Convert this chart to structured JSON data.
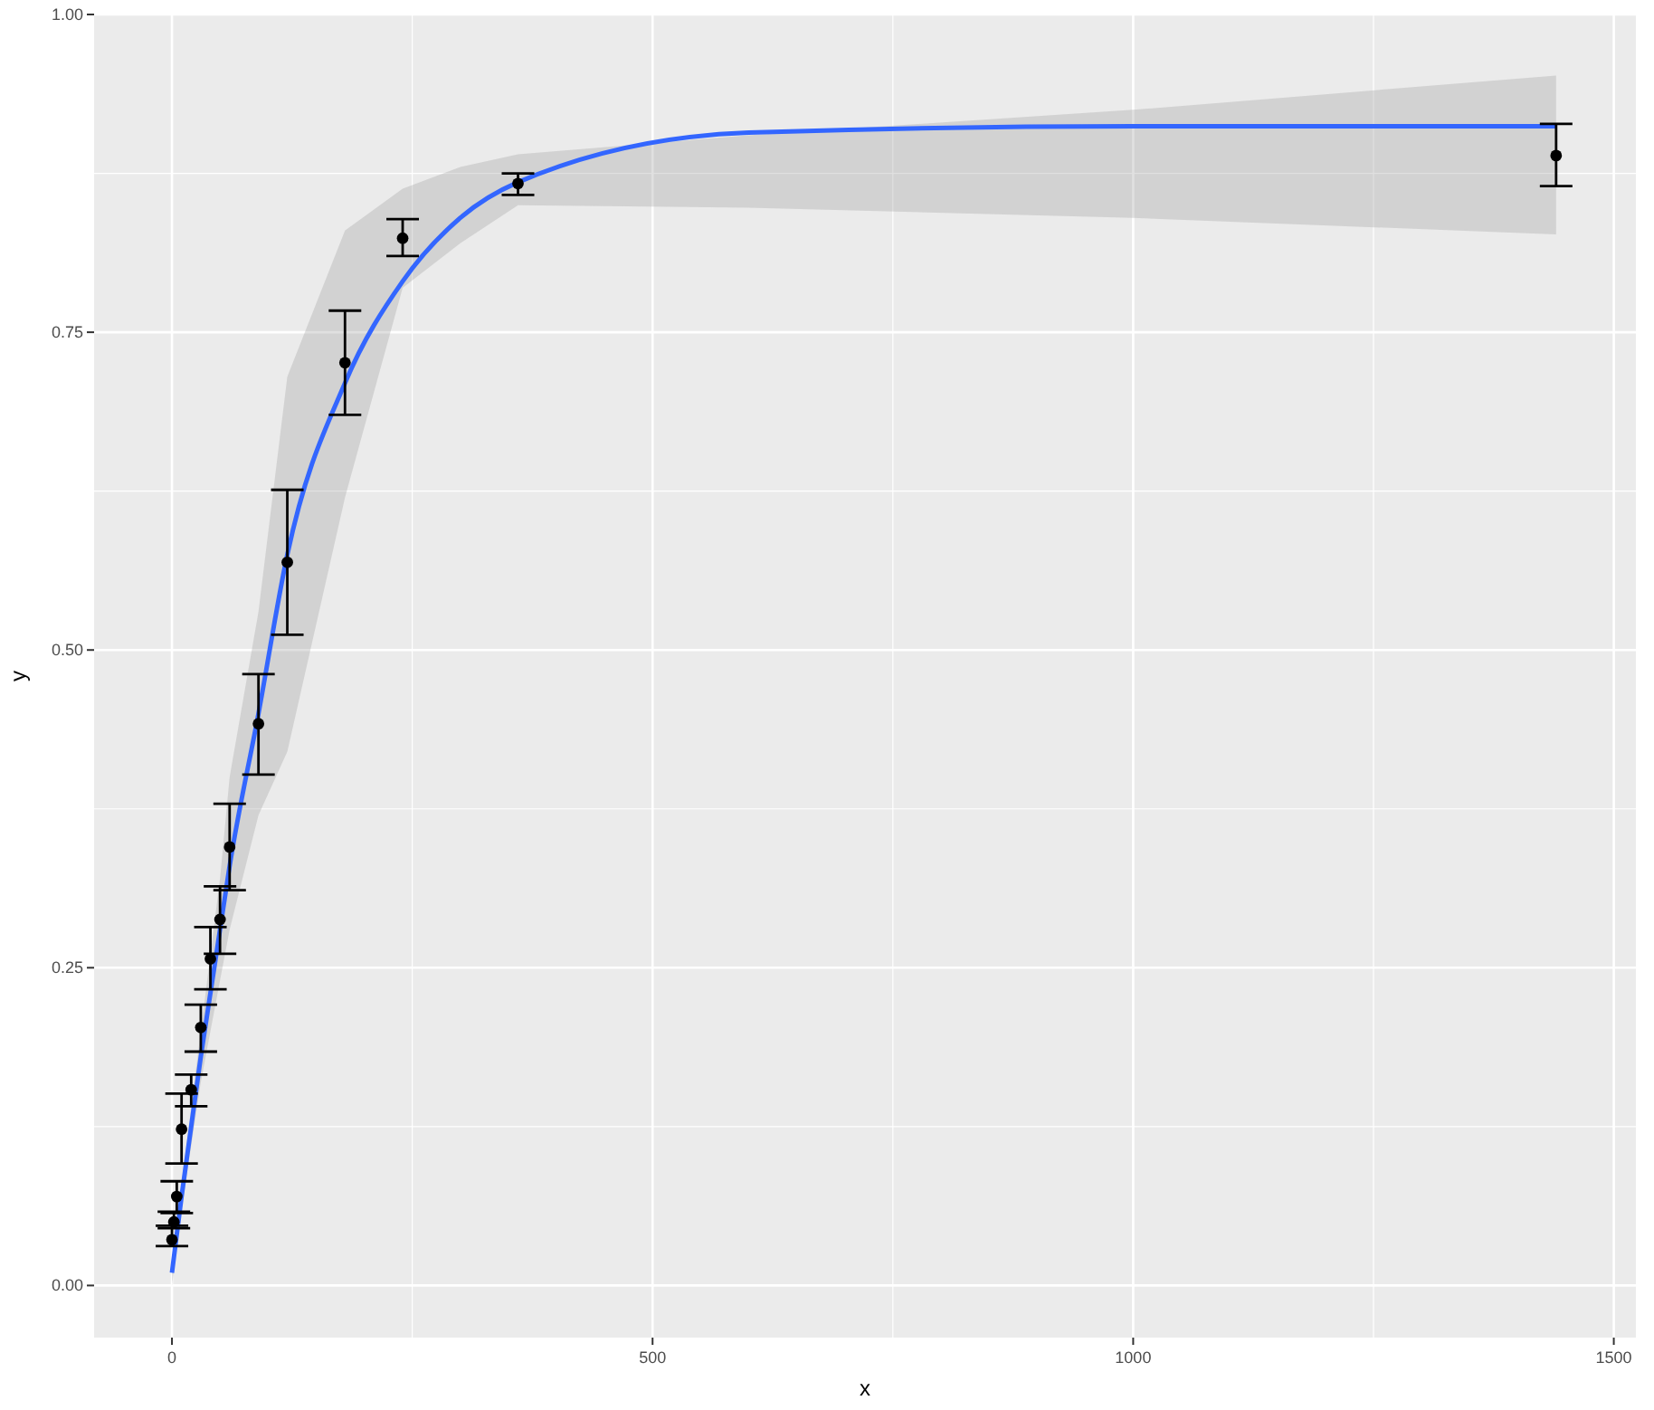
{
  "chart_data": {
    "type": "scatter",
    "xlabel": "x",
    "ylabel": "y",
    "xlim": [
      -81,
      1523
    ],
    "ylim": [
      -0.041,
      1.0
    ],
    "xticks": [
      0,
      500,
      1000,
      1500
    ],
    "yticks": [
      {
        "value": 0,
        "label": "0.00"
      },
      {
        "value": 0.25,
        "label": "0.25"
      },
      {
        "value": 0.5,
        "label": "0.50"
      },
      {
        "value": 0.75,
        "label": "0.75"
      },
      {
        "value": 1,
        "label": "1.00"
      }
    ],
    "grid": true,
    "series": [
      {
        "color": "#000000",
        "marker": "circle",
        "x": [
          0,
          2,
          5,
          10,
          20,
          30,
          40,
          50,
          60,
          90,
          120,
          180,
          240,
          360,
          1440
        ],
        "values": [
          0.036,
          0.05,
          0.07,
          0.123,
          0.154,
          0.203,
          0.257,
          0.288,
          0.345,
          0.442,
          0.569,
          0.726,
          0.824,
          0.867,
          0.889
        ],
        "errors": [
          [
            0.031,
            0.047
          ],
          [
            0.045,
            0.058
          ],
          [
            0.057,
            0.082
          ],
          [
            0.096,
            0.151
          ],
          [
            0.141,
            0.166
          ],
          [
            0.184,
            0.221
          ],
          [
            0.233,
            0.282
          ],
          [
            0.261,
            0.314
          ],
          [
            0.311,
            0.379
          ],
          [
            0.402,
            0.481
          ],
          [
            0.512,
            0.626
          ],
          [
            0.685,
            0.767
          ],
          [
            0.81,
            0.839
          ],
          [
            0.858,
            0.875
          ],
          [
            0.865,
            0.914
          ]
        ]
      },
      {
        "type": "line",
        "color": "#3366ff",
        "marker": "none",
        "line_style": "solid",
        "x": [
          0,
          10,
          20,
          30,
          40,
          50,
          60,
          90,
          120,
          180,
          240,
          300,
          360,
          600,
          1000,
          1440
        ],
        "values": [
          0.01,
          0.07,
          0.125,
          0.18,
          0.23,
          0.28,
          0.33,
          0.45,
          0.575,
          0.71,
          0.79,
          0.84,
          0.868,
          0.907,
          0.912,
          0.912
        ],
        "lower": [
          0.0,
          0.06,
          0.11,
          0.16,
          0.2,
          0.24,
          0.28,
          0.37,
          0.42,
          0.62,
          0.785,
          0.82,
          0.85,
          0.848,
          0.84,
          0.827
        ],
        "upper": [
          0.02,
          0.08,
          0.14,
          0.2,
          0.26,
          0.32,
          0.4,
          0.53,
          0.715,
          0.83,
          0.863,
          0.88,
          0.89,
          0.905,
          0.925,
          0.952
        ]
      }
    ]
  }
}
